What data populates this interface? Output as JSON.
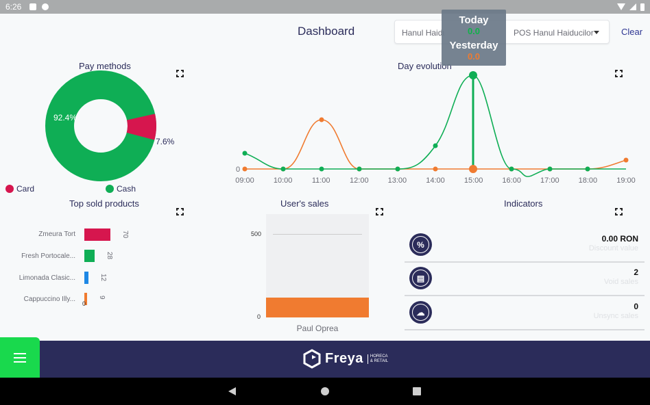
{
  "status_bar": {
    "time": "6:26"
  },
  "header": {
    "title": "Dashboard",
    "location_select": "Hanul Haiducilor",
    "pos_select": "POS Hanul Haiducilor",
    "clear_label": "Clear"
  },
  "tooltip": {
    "today_label": "Today",
    "today_value": "0.0",
    "yesterday_label": "Yesterday",
    "yesterday_value": "0.0"
  },
  "pay_methods": {
    "title": "Pay methods",
    "cash_pct_label": "92.4%",
    "card_pct_label": "7.6%",
    "legend_card": "Card",
    "legend_cash": "Cash",
    "colors": {
      "card": "#d6164e",
      "cash": "#0fae55"
    }
  },
  "day_evolution": {
    "title": "Day evolution",
    "y_zero": "0",
    "x_labels": [
      "09:00",
      "10:00",
      "11:00",
      "12:00",
      "13:00",
      "14:00",
      "15:00",
      "16:00",
      "17:00",
      "18:00",
      "19:00"
    ],
    "colors": {
      "today": "#0fae55",
      "yesterday": "#f07b30"
    }
  },
  "top_products": {
    "title": "Top sold products",
    "items": [
      {
        "name": "Zmeura Tort",
        "value": "70",
        "color": "#d6164e"
      },
      {
        "name": "Fresh Portocale...",
        "value": "28",
        "color": "#0fae55"
      },
      {
        "name": "Limonada Clasic...",
        "value": "12",
        "color": "#1e88e5"
      },
      {
        "name": "Cappuccino Illy...",
        "value": "9",
        "color": "#f07b30"
      }
    ],
    "zero_label": "0"
  },
  "users_sales": {
    "title": "User's sales",
    "y_max": "500",
    "y_min": "0",
    "user": "Paul Oprea"
  },
  "indicators": {
    "title": "Indicators",
    "items": [
      {
        "icon": "percent-icon",
        "icon_text": "%",
        "value": "0.00 RON",
        "label": "Discount value"
      },
      {
        "icon": "void-receipt-icon",
        "icon_text": "▤",
        "value": "2",
        "label": "Void sales"
      },
      {
        "icon": "cloud-unsync-icon",
        "icon_text": "☁",
        "value": "0",
        "label": "Unsync sales"
      }
    ]
  },
  "footer": {
    "brand": "Freya",
    "brand_sub_1": "HORECA",
    "brand_sub_2": "& RETAIL"
  }
}
